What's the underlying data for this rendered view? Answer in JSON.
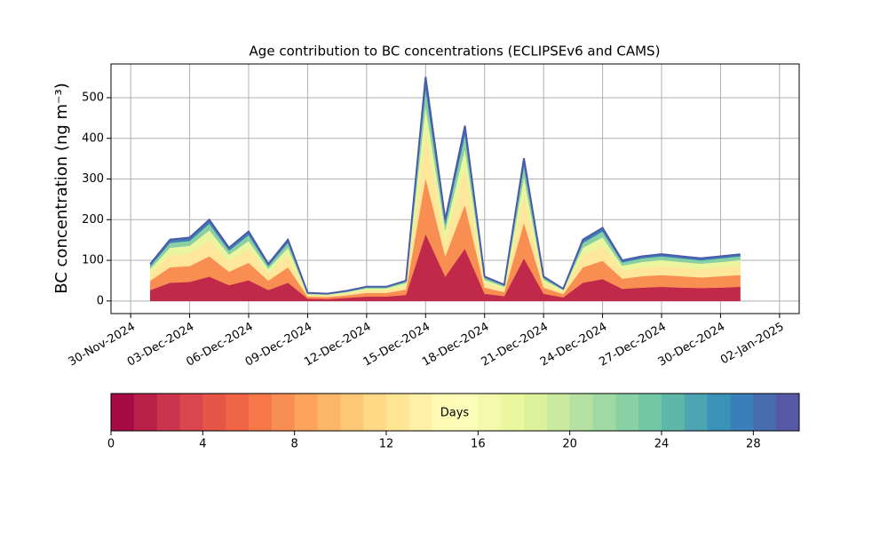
{
  "chart_data": {
    "type": "stacked_area",
    "title": "Age contribution to BC concentrations (ECLIPSEv6 and CAMS)",
    "ylabel": "BC concentration (ng m⁻³)",
    "x": [
      "2024-12-01",
      "2024-12-02",
      "2024-12-03",
      "2024-12-04",
      "2024-12-05",
      "2024-12-06",
      "2024-12-07",
      "2024-12-08",
      "2024-12-09",
      "2024-12-10",
      "2024-12-11",
      "2024-12-12",
      "2024-12-13",
      "2024-12-14",
      "2024-12-15",
      "2024-12-16",
      "2024-12-17",
      "2024-12-18",
      "2024-12-19",
      "2024-12-20",
      "2024-12-21",
      "2024-12-22",
      "2024-12-23",
      "2024-12-24",
      "2024-12-25",
      "2024-12-26",
      "2024-12-27",
      "2024-12-28",
      "2024-12-29",
      "2024-12-30",
      "2024-12-31"
    ],
    "series": [
      {
        "color": "#c0294a",
        "values": [
          27,
          45,
          47,
          60,
          39,
          51,
          27,
          45,
          6,
          5,
          8,
          11,
          11,
          15,
          165,
          60,
          129,
          18,
          12,
          105,
          18,
          9,
          45,
          54,
          30,
          33,
          35,
          33,
          32,
          33,
          35
        ]
      },
      {
        "color": "#f98e52",
        "values": [
          23,
          38,
          39,
          50,
          33,
          43,
          23,
          38,
          5,
          5,
          6,
          9,
          9,
          13,
          138,
          50,
          108,
          15,
          10,
          88,
          15,
          8,
          38,
          45,
          25,
          28,
          29,
          28,
          26,
          28,
          29
        ]
      },
      {
        "color": "#fee69a",
        "values": [
          18,
          30,
          31,
          40,
          26,
          34,
          18,
          30,
          4,
          4,
          5,
          7,
          7,
          10,
          110,
          40,
          86,
          12,
          8,
          70,
          12,
          6,
          30,
          36,
          20,
          22,
          23,
          22,
          21,
          22,
          23
        ]
      },
      {
        "color": "#eaf69f",
        "values": [
          11,
          18,
          19,
          24,
          16,
          20,
          11,
          18,
          2,
          2,
          3,
          4,
          4,
          6,
          66,
          24,
          52,
          7,
          5,
          42,
          7,
          4,
          18,
          22,
          12,
          13,
          14,
          13,
          13,
          13,
          14
        ]
      },
      {
        "color": "#88cfa4",
        "values": [
          7,
          12,
          12,
          16,
          10,
          14,
          7,
          12,
          2,
          1,
          2,
          3,
          3,
          4,
          44,
          16,
          34,
          5,
          3,
          28,
          5,
          2,
          12,
          14,
          8,
          9,
          9,
          9,
          8,
          9,
          9
        ]
      },
      {
        "color": "#3d7db8",
        "values": [
          5,
          8,
          8,
          10,
          7,
          9,
          5,
          8,
          1,
          1,
          1,
          1,
          1,
          2,
          28,
          10,
          22,
          3,
          2,
          18,
          3,
          1,
          8,
          9,
          5,
          5,
          5,
          5,
          5,
          5,
          5
        ]
      }
    ],
    "edge_color": "#4a5ba8",
    "xlim": [
      "2024-11-29",
      "2025-01-03"
    ],
    "xticks": [
      {
        "value": "2024-11-30",
        "label": "30-Nov-2024"
      },
      {
        "value": "2024-12-03",
        "label": "03-Dec-2024"
      },
      {
        "value": "2024-12-06",
        "label": "06-Dec-2024"
      },
      {
        "value": "2024-12-09",
        "label": "09-Dec-2024"
      },
      {
        "value": "2024-12-12",
        "label": "12-Dec-2024"
      },
      {
        "value": "2024-12-15",
        "label": "15-Dec-2024"
      },
      {
        "value": "2024-12-18",
        "label": "18-Dec-2024"
      },
      {
        "value": "2024-12-21",
        "label": "21-Dec-2024"
      },
      {
        "value": "2024-12-24",
        "label": "24-Dec-2024"
      },
      {
        "value": "2024-12-27",
        "label": "27-Dec-2024"
      },
      {
        "value": "2024-12-30",
        "label": "30-Dec-2024"
      },
      {
        "value": "2025-01-02",
        "label": "02-Jan-2025"
      }
    ],
    "ylim": [
      -31,
      583
    ],
    "yticks": [
      0,
      100,
      200,
      300,
      400,
      500
    ],
    "grid": true,
    "colorbar": {
      "label": "Days",
      "lim": [
        0,
        30
      ],
      "ticks": [
        0,
        4,
        8,
        12,
        16,
        20,
        24,
        28
      ],
      "levels": 30,
      "cmap": [
        "#9e0142",
        "#d53e4f",
        "#f46d43",
        "#fdae61",
        "#fee08b",
        "#ffffbf",
        "#e6f598",
        "#abdda4",
        "#66c2a5",
        "#3288bd",
        "#5e4fa2"
      ]
    }
  }
}
